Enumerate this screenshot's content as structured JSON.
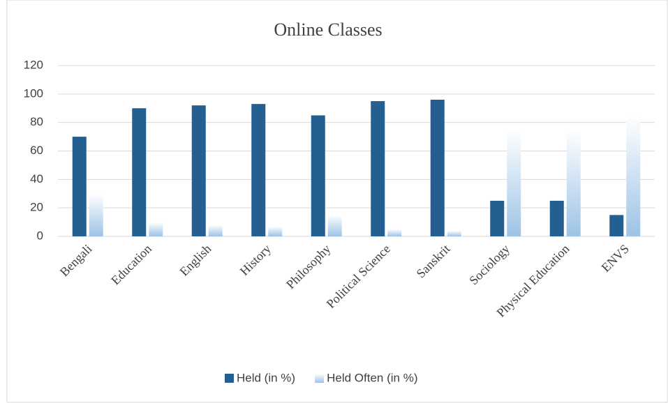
{
  "chart_data": {
    "type": "bar",
    "title": "Online Classes",
    "categories": [
      "Bengali",
      "Education",
      "English",
      "History",
      "Philosophy",
      "Political Science",
      "Sanskrit",
      "Sociology",
      "Physical Education",
      "ENVS"
    ],
    "series": [
      {
        "name": "Held (in %)",
        "color": "#255e91",
        "values": [
          70,
          90,
          92,
          93,
          85,
          95,
          96,
          25,
          25,
          15
        ]
      },
      {
        "name": "Held Often (in %)",
        "color": "#9dc3e6",
        "gradient": true,
        "values": [
          30,
          10,
          8,
          7,
          15,
          5,
          4,
          75,
          75,
          85
        ]
      }
    ],
    "ylim": [
      0,
      120
    ],
    "yticks": [
      0,
      20,
      40,
      60,
      80,
      100,
      120
    ],
    "grid": true,
    "legend": "bottom"
  }
}
